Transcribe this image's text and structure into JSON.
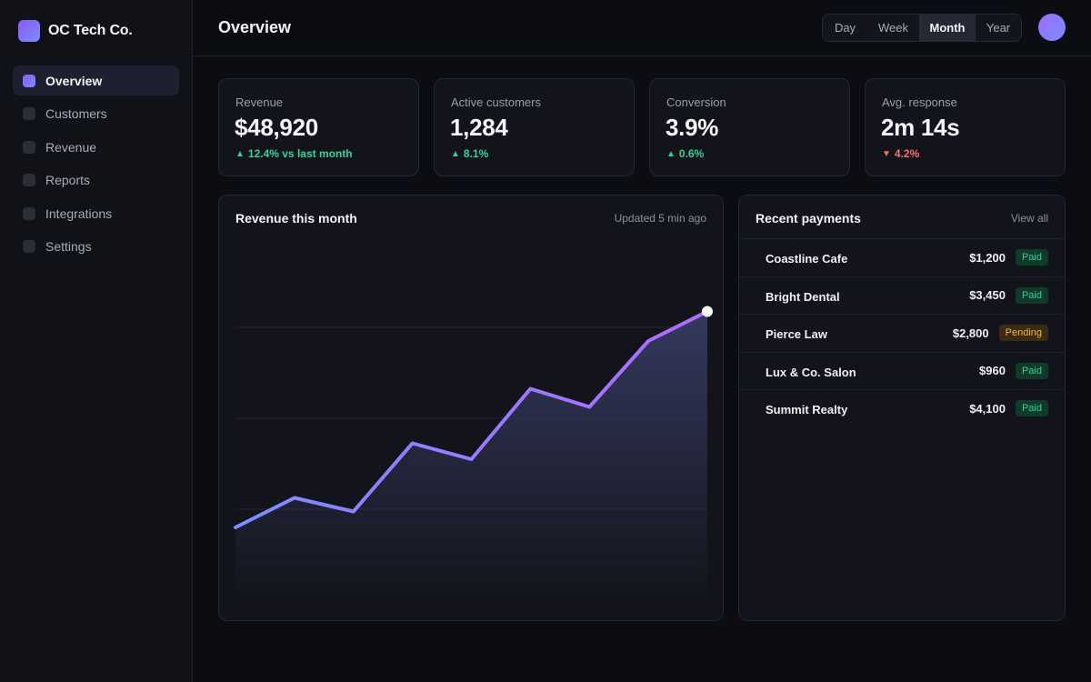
{
  "brand": {
    "name": "OC Tech Co."
  },
  "sidebar": {
    "items": [
      {
        "label": "Overview",
        "active": true
      },
      {
        "label": "Customers",
        "active": false
      },
      {
        "label": "Revenue",
        "active": false
      },
      {
        "label": "Reports",
        "active": false
      },
      {
        "label": "Integrations",
        "active": false
      },
      {
        "label": "Settings",
        "active": false
      }
    ]
  },
  "header": {
    "title": "Overview",
    "ranges": [
      {
        "label": "Day",
        "active": false
      },
      {
        "label": "Week",
        "active": false
      },
      {
        "label": "Month",
        "active": true
      },
      {
        "label": "Year",
        "active": false
      }
    ]
  },
  "kpis": [
    {
      "label": "Revenue",
      "value": "$48,920",
      "delta": "12.4% vs last month",
      "direction": "up"
    },
    {
      "label": "Active customers",
      "value": "1,284",
      "delta": "8.1%",
      "direction": "up"
    },
    {
      "label": "Conversion",
      "value": "3.9%",
      "delta": "0.6%",
      "direction": "up"
    },
    {
      "label": "Avg. response",
      "value": "2m 14s",
      "delta": "4.2%",
      "direction": "down"
    }
  ],
  "chart_panel": {
    "title": "Revenue this month",
    "updated": "Updated 5 min ago"
  },
  "chart_data": {
    "type": "area",
    "title": "",
    "xlabel": "",
    "ylabel": "",
    "x": [
      1,
      2,
      3,
      4,
      5,
      6,
      7,
      8,
      9
    ],
    "values": [
      16,
      22.5,
      19.5,
      34.5,
      31,
      46.5,
      42.5,
      57,
      63.5
    ],
    "ylim": [
      0,
      80
    ],
    "grid": true,
    "legend": "none",
    "colors": {
      "line_start": "#7c8cff",
      "line_end": "#b06cff",
      "fill": "#3a3f6a"
    }
  },
  "payments": {
    "title": "Recent payments",
    "view_all": "View all",
    "rows": [
      {
        "name": "Coastline Cafe",
        "amount": "$1,200",
        "status": "Paid",
        "kind": "paid"
      },
      {
        "name": "Bright Dental",
        "amount": "$3,450",
        "status": "Paid",
        "kind": "paid"
      },
      {
        "name": "Pierce Law",
        "amount": "$2,800",
        "status": "Pending",
        "kind": "pending"
      },
      {
        "name": "Lux & Co. Salon",
        "amount": "$960",
        "status": "Paid",
        "kind": "paid"
      },
      {
        "name": "Summit Realty",
        "amount": "$4,100",
        "status": "Paid",
        "kind": "paid"
      }
    ]
  }
}
